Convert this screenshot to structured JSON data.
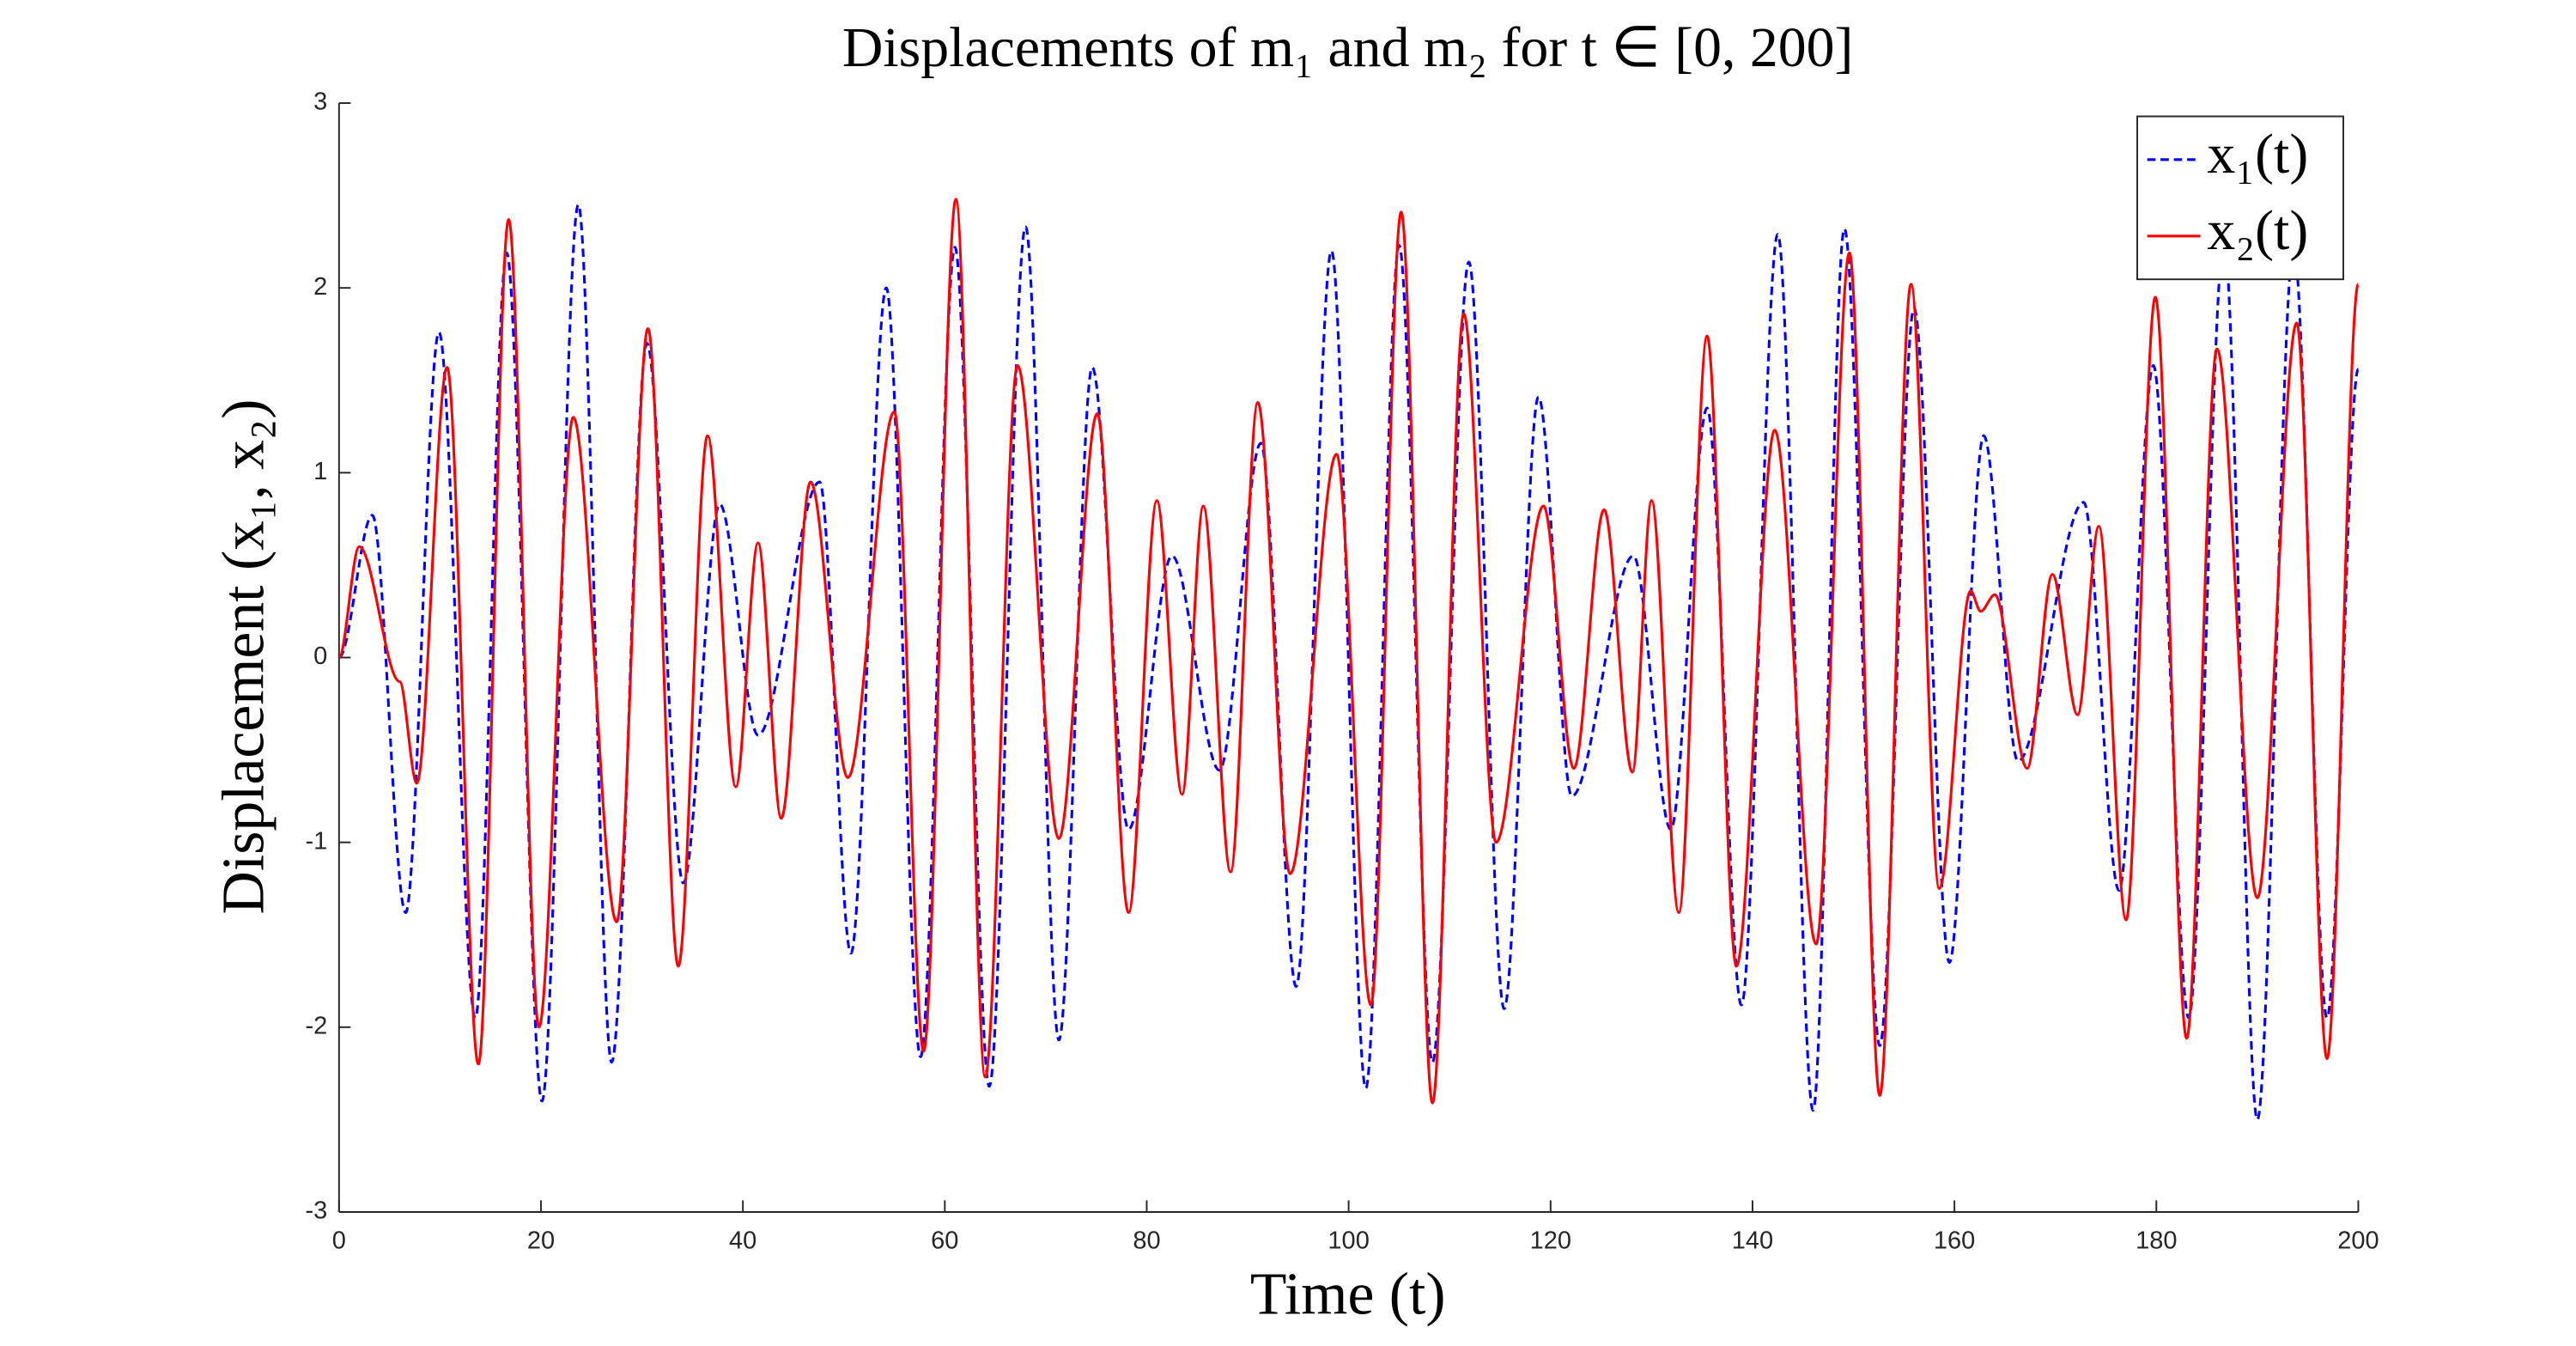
{
  "chart_data": {
    "type": "line",
    "title": "Displacements of m₁ and m₂ for t ∈ [0, 200]",
    "x_label": "Time (t)",
    "y_label": "Displacement (x₁, x₂)",
    "xlim": [
      0,
      200
    ],
    "ylim": [
      -3,
      3
    ],
    "xticks": [
      0,
      20,
      40,
      60,
      80,
      100,
      120,
      140,
      160,
      180,
      200
    ],
    "yticks": [
      -3,
      -2,
      -1,
      0,
      1,
      2,
      3
    ],
    "legend": "upper-right",
    "series": [
      {
        "name": "x₁(t)",
        "color": "#0000ff",
        "linestyle": "dashed",
        "x": [
          0,
          3.3,
          6.6,
          9.9,
          13.5,
          16.6,
          20.1,
          23.7,
          27,
          30.5,
          34.1,
          37.7,
          41.5,
          47.6,
          50.7,
          54.2,
          57.6,
          61,
          64.4,
          68,
          71.3,
          74.6,
          78.2,
          82.5,
          87.2,
          91.3,
          94.8,
          98.3,
          101.7,
          105,
          108.3,
          111.9,
          115.4,
          118.8,
          122.1,
          128.2,
          131.9,
          135.5,
          138.9,
          142.5,
          146,
          149.1,
          152.6,
          156,
          159.5,
          162.9,
          166.3,
          172.8,
          176.3,
          179.7,
          183.2,
          186.7,
          190,
          193.6,
          196.9,
          200
        ],
        "values": [
          0,
          0.77,
          -1.38,
          1.76,
          -1.95,
          2.19,
          -2.4,
          2.45,
          -2.19,
          1.7,
          -1.22,
          0.83,
          -0.42,
          0.95,
          -1.6,
          2.0,
          -2.16,
          2.22,
          -2.32,
          2.33,
          -2.07,
          1.57,
          -0.93,
          0.55,
          -0.61,
          1.16,
          -1.78,
          2.2,
          -2.33,
          2.23,
          -2.19,
          2.14,
          -1.9,
          1.41,
          -0.75,
          0.55,
          -0.93,
          1.35,
          -1.88,
          2.29,
          -2.45,
          2.32,
          -2.1,
          1.89,
          -1.65,
          1.2,
          -0.56,
          0.84,
          -1.26,
          1.58,
          -1.95,
          2.25,
          -2.5,
          2.22,
          -1.95,
          1.56
        ]
      },
      {
        "name": "x₂(t)",
        "color": "#ff0000",
        "linestyle": "solid",
        "x": [
          0,
          2,
          6,
          7.7,
          10.7,
          13.8,
          16.8,
          19.8,
          23.2,
          27.5,
          30.6,
          33.6,
          36.5,
          39.3,
          41.5,
          43.8,
          46.7,
          50.4,
          55,
          57.9,
          61.1,
          64,
          67.2,
          71.3,
          75.1,
          78.2,
          81,
          83.5,
          85.6,
          88.3,
          91,
          94.2,
          98.8,
          102.2,
          105.2,
          108.3,
          111.4,
          114.6,
          119.3,
          122.3,
          125.3,
          128.1,
          130,
          132.7,
          135.5,
          138.4,
          142.2,
          146.3,
          149.6,
          152.6,
          155.7,
          158.5,
          161.6,
          162.6,
          164,
          167.2,
          169.7,
          172.2,
          174.3,
          177,
          179.9,
          183,
          186,
          190,
          193.9,
          196.9,
          200
        ],
        "values": [
          0,
          0.6,
          -0.13,
          -0.68,
          1.57,
          -2.2,
          2.37,
          -2.0,
          1.3,
          -1.43,
          1.78,
          -1.67,
          1.2,
          -0.7,
          0.62,
          -0.87,
          0.95,
          -0.65,
          1.33,
          -2.13,
          2.48,
          -2.27,
          1.58,
          -0.98,
          1.32,
          -1.38,
          0.85,
          -0.74,
          0.82,
          -1.16,
          1.38,
          -1.17,
          1.1,
          -1.88,
          2.41,
          -2.41,
          1.86,
          -1.0,
          0.82,
          -0.6,
          0.8,
          -0.62,
          0.85,
          -1.38,
          1.74,
          -1.67,
          1.23,
          -1.55,
          2.19,
          -2.37,
          2.02,
          -1.25,
          0.36,
          0.25,
          0.34,
          -0.6,
          0.45,
          -0.31,
          0.71,
          -1.42,
          1.95,
          -2.06,
          1.67,
          -1.3,
          1.81,
          -2.17,
          2.02
        ]
      }
    ]
  }
}
